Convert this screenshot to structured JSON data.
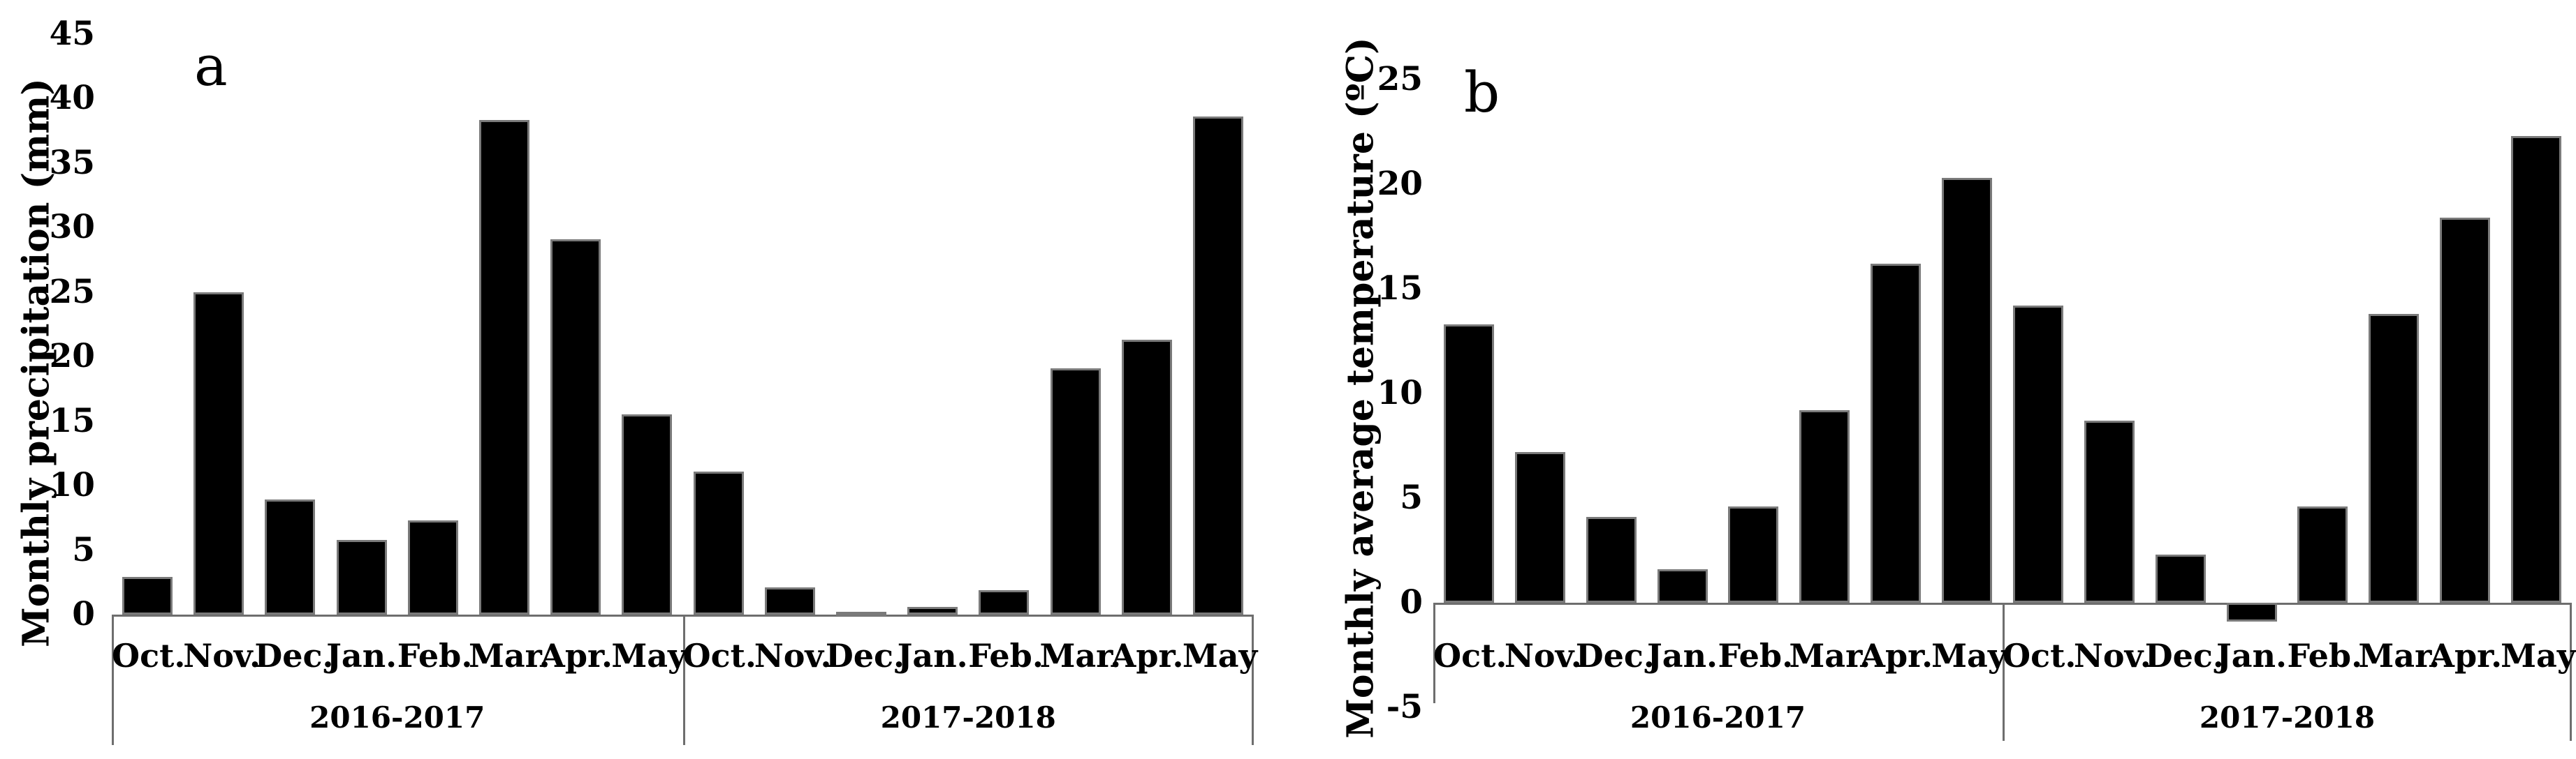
{
  "chart_data": [
    {
      "type": "bar",
      "panel_label": "a",
      "ylabel": "Monthly precipitation (mm)",
      "xlabel": "",
      "ylim": [
        0,
        45
      ],
      "yticks": [
        45,
        40,
        35,
        30,
        25,
        20,
        15,
        10,
        5,
        0
      ],
      "grid": false,
      "legend": "none",
      "bar_color": "#000000",
      "groups": [
        {
          "label": "2016-2017",
          "categories": [
            "Oct.",
            "Nov.",
            "Dec.",
            "Jan.",
            "Feb.",
            "Mar.",
            "Apr.",
            "May"
          ],
          "values": [
            2.9,
            25.0,
            8.9,
            5.8,
            7.3,
            38.3,
            29.1,
            15.5
          ]
        },
        {
          "label": "2017-2018",
          "categories": [
            "Oct.",
            "Nov.",
            "Dec.",
            "Jan.",
            "Feb.",
            "Mar.",
            "Apr.",
            "May"
          ],
          "values": [
            11.1,
            2.1,
            0.2,
            0.6,
            1.9,
            19.1,
            21.3,
            38.6
          ]
        }
      ]
    },
    {
      "type": "bar",
      "panel_label": "b",
      "ylabel": "Monthly average temperature (ºC)",
      "xlabel": "",
      "ylim": [
        -5,
        25
      ],
      "yticks": [
        25,
        20,
        15,
        10,
        5,
        0,
        -5
      ],
      "grid": false,
      "legend": "none",
      "bar_color": "#000000",
      "groups": [
        {
          "label": "2016-2017",
          "categories": [
            "Oct.",
            "Nov.",
            "Dec.",
            "Jan.",
            "Feb.",
            "Mar.",
            "Apr.",
            "May"
          ],
          "values": [
            13.3,
            7.2,
            4.1,
            1.6,
            4.6,
            9.2,
            16.2,
            20.3
          ]
        },
        {
          "label": "2017-2018",
          "categories": [
            "Oct.",
            "Nov.",
            "Dec.",
            "Jan.",
            "Feb.",
            "Mar.",
            "Apr.",
            "May"
          ],
          "values": [
            14.2,
            8.7,
            2.3,
            -0.9,
            4.6,
            13.8,
            18.4,
            22.3
          ]
        }
      ]
    }
  ]
}
